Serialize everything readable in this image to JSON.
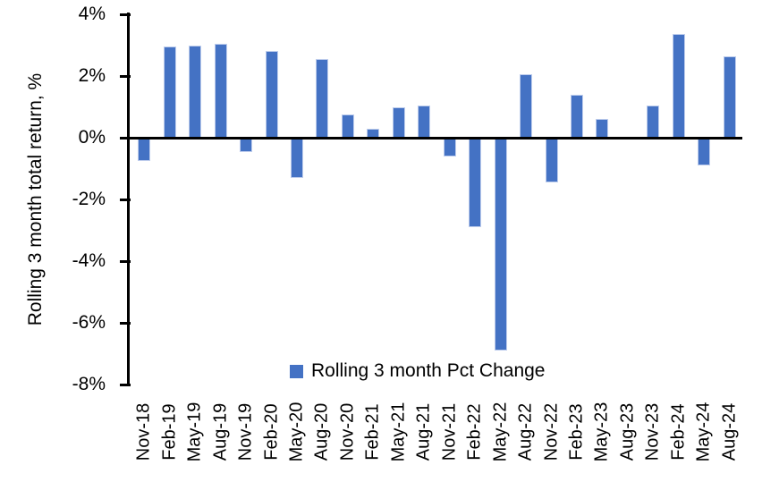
{
  "chart_data": {
    "type": "bar",
    "ylabel": "Rolling 3 month total return, %",
    "categories": [
      "Nov-18",
      "Feb-19",
      "May-19",
      "Aug-19",
      "Nov-19",
      "Feb-20",
      "May-20",
      "Aug-20",
      "Nov-20",
      "Feb-21",
      "May-21",
      "Aug-21",
      "Nov-21",
      "Feb-22",
      "May-22",
      "Aug-22",
      "Nov-22",
      "Feb-23",
      "May-23",
      "Aug-23",
      "Nov-23",
      "Feb-24",
      "May-24",
      "Aug-24"
    ],
    "series": [
      {
        "name": "Rolling 3 month Pct Change",
        "values": [
          -0.75,
          2.95,
          3.0,
          3.05,
          -0.45,
          2.8,
          -1.3,
          2.55,
          0.75,
          0.3,
          1.0,
          1.05,
          -0.6,
          -2.9,
          -6.9,
          2.05,
          -1.45,
          1.4,
          0.6,
          0.0,
          1.05,
          3.35,
          -0.9,
          2.65
        ],
        "color": "#4472C4"
      }
    ],
    "ylim": [
      -8,
      4
    ],
    "yticks": [
      4,
      2,
      0,
      -2,
      -4,
      -6,
      -8
    ],
    "ytick_labels": [
      "4%",
      "2%",
      "0%",
      "-2%",
      "-4%",
      "-6%",
      "-8%"
    ],
    "grid": false,
    "legend": {
      "label": "Rolling 3 month Pct Change",
      "position": "bottom-center"
    },
    "colors": {
      "bar_fill": "#4472C4",
      "bar_border": "#BDCCEC",
      "axis": "#000000",
      "background": "#FFFFFF"
    }
  }
}
